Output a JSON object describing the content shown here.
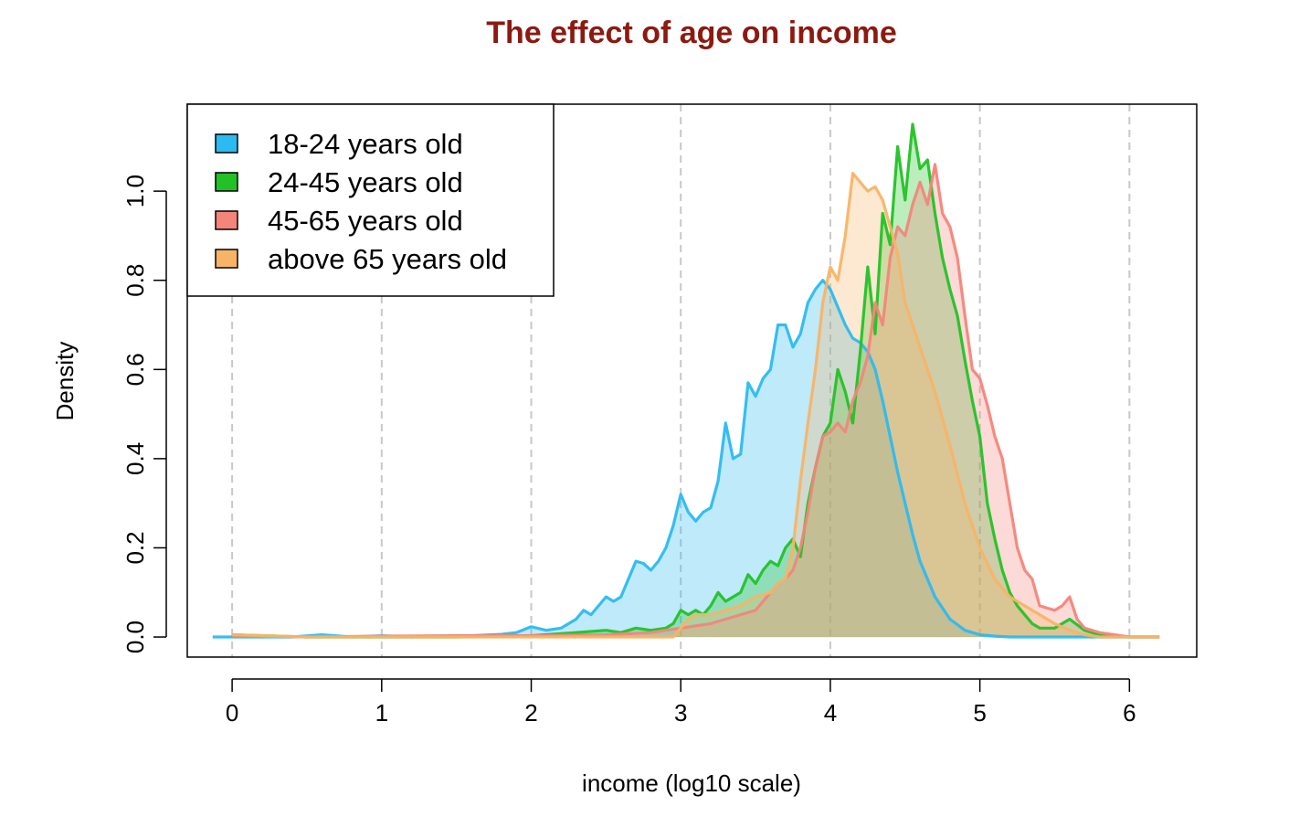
{
  "chart_data": {
    "type": "area",
    "title": "The effect of age on income",
    "title_color": "#8B1A10",
    "xlabel": "income (log10 scale)",
    "ylabel": "Density",
    "xlim": [
      -0.3,
      6.45
    ],
    "ylim": [
      -0.045,
      1.195
    ],
    "x_ticks": [
      "0",
      "1",
      "2",
      "3",
      "4",
      "5",
      "6"
    ],
    "y_ticks": [
      "0.0",
      "0.2",
      "0.4",
      "0.6",
      "0.8",
      "1.0"
    ],
    "grid": "vertical dashed lines at x ticks",
    "legend_position": "top-left",
    "series": [
      {
        "name": "18-24 years old",
        "color": "#2BBBF0",
        "fill": "#2BBBF0",
        "x": [
          -0.13,
          0.0,
          0.2,
          0.4,
          0.6,
          0.8,
          1.0,
          1.2,
          1.4,
          1.6,
          1.8,
          1.9,
          2.0,
          2.1,
          2.2,
          2.3,
          2.35,
          2.4,
          2.5,
          2.55,
          2.6,
          2.7,
          2.75,
          2.8,
          2.85,
          2.9,
          2.95,
          3.0,
          3.05,
          3.1,
          3.15,
          3.2,
          3.25,
          3.3,
          3.35,
          3.4,
          3.45,
          3.5,
          3.55,
          3.6,
          3.65,
          3.7,
          3.75,
          3.8,
          3.85,
          3.9,
          3.95,
          4.0,
          4.05,
          4.1,
          4.15,
          4.2,
          4.25,
          4.3,
          4.35,
          4.4,
          4.45,
          4.5,
          4.55,
          4.6,
          4.7,
          4.8,
          4.9,
          5.0,
          5.1,
          5.2,
          5.4,
          5.6,
          5.8,
          6.0,
          6.2
        ],
        "y": [
          0.0,
          0.0,
          0.0,
          0.0,
          0.005,
          0.0,
          0.003,
          0.0,
          0.002,
          0.003,
          0.006,
          0.01,
          0.023,
          0.015,
          0.02,
          0.04,
          0.06,
          0.05,
          0.09,
          0.08,
          0.09,
          0.17,
          0.165,
          0.15,
          0.17,
          0.2,
          0.25,
          0.32,
          0.28,
          0.26,
          0.28,
          0.29,
          0.35,
          0.48,
          0.4,
          0.41,
          0.57,
          0.54,
          0.58,
          0.6,
          0.7,
          0.7,
          0.65,
          0.68,
          0.75,
          0.78,
          0.8,
          0.78,
          0.74,
          0.7,
          0.67,
          0.66,
          0.64,
          0.6,
          0.53,
          0.45,
          0.37,
          0.3,
          0.23,
          0.17,
          0.09,
          0.04,
          0.015,
          0.005,
          0.002,
          0.0,
          0.0,
          0.0,
          0.0,
          0.0,
          0.0
        ]
      },
      {
        "name": "24-45 years old",
        "color": "#22C226",
        "fill": "#22C226",
        "x": [
          0.0,
          0.5,
          1.0,
          1.5,
          2.0,
          2.3,
          2.5,
          2.6,
          2.7,
          2.8,
          2.9,
          2.95,
          3.0,
          3.05,
          3.1,
          3.15,
          3.2,
          3.25,
          3.3,
          3.35,
          3.4,
          3.45,
          3.5,
          3.55,
          3.6,
          3.65,
          3.7,
          3.75,
          3.8,
          3.85,
          3.9,
          3.95,
          4.0,
          4.05,
          4.1,
          4.15,
          4.2,
          4.25,
          4.3,
          4.35,
          4.4,
          4.45,
          4.5,
          4.55,
          4.6,
          4.65,
          4.7,
          4.75,
          4.8,
          4.85,
          4.9,
          4.95,
          5.0,
          5.05,
          5.1,
          5.15,
          5.2,
          5.25,
          5.3,
          5.35,
          5.4,
          5.5,
          5.6,
          5.7,
          5.8,
          5.9,
          6.0,
          6.2
        ],
        "y": [
          0.005,
          0.0,
          0.0,
          0.0,
          0.003,
          0.01,
          0.015,
          0.01,
          0.02,
          0.015,
          0.02,
          0.03,
          0.06,
          0.05,
          0.06,
          0.05,
          0.07,
          0.1,
          0.08,
          0.09,
          0.1,
          0.14,
          0.12,
          0.15,
          0.17,
          0.16,
          0.2,
          0.22,
          0.18,
          0.3,
          0.38,
          0.45,
          0.48,
          0.6,
          0.55,
          0.48,
          0.64,
          0.83,
          0.68,
          0.95,
          0.88,
          1.1,
          0.98,
          1.15,
          1.05,
          1.07,
          0.95,
          0.85,
          0.78,
          0.72,
          0.62,
          0.53,
          0.45,
          0.3,
          0.22,
          0.15,
          0.1,
          0.07,
          0.05,
          0.03,
          0.02,
          0.02,
          0.04,
          0.015,
          0.005,
          0.002,
          0.0,
          0.0
        ]
      },
      {
        "name": "45-65 years old",
        "color": "#F4857A",
        "fill": "#F4857A",
        "x": [
          0.0,
          0.5,
          1.0,
          1.5,
          2.0,
          2.5,
          2.8,
          2.9,
          3.0,
          3.1,
          3.2,
          3.3,
          3.4,
          3.5,
          3.55,
          3.6,
          3.65,
          3.7,
          3.75,
          3.8,
          3.85,
          3.9,
          3.95,
          4.0,
          4.05,
          4.1,
          4.15,
          4.2,
          4.25,
          4.3,
          4.35,
          4.4,
          4.45,
          4.5,
          4.55,
          4.6,
          4.65,
          4.7,
          4.75,
          4.8,
          4.85,
          4.9,
          4.95,
          5.0,
          5.05,
          5.1,
          5.15,
          5.2,
          5.25,
          5.3,
          5.35,
          5.4,
          5.5,
          5.55,
          5.6,
          5.65,
          5.7,
          5.8,
          5.9,
          6.0,
          6.2
        ],
        "y": [
          0.003,
          0.0,
          0.002,
          0.003,
          0.003,
          0.005,
          0.01,
          0.015,
          0.02,
          0.025,
          0.03,
          0.04,
          0.05,
          0.06,
          0.08,
          0.1,
          0.12,
          0.13,
          0.15,
          0.2,
          0.28,
          0.38,
          0.45,
          0.46,
          0.48,
          0.46,
          0.53,
          0.57,
          0.63,
          0.75,
          0.7,
          0.85,
          0.92,
          0.9,
          0.97,
          1.02,
          0.97,
          1.06,
          0.95,
          0.92,
          0.85,
          0.72,
          0.6,
          0.58,
          0.52,
          0.45,
          0.4,
          0.3,
          0.2,
          0.15,
          0.13,
          0.07,
          0.06,
          0.07,
          0.09,
          0.04,
          0.02,
          0.01,
          0.005,
          0.0,
          0.0
        ]
      },
      {
        "name": "above 65 years old",
        "color": "#F7B466",
        "fill": "#F7B466",
        "x": [
          0.0,
          0.5,
          1.0,
          1.5,
          2.0,
          2.5,
          2.8,
          2.95,
          3.0,
          3.05,
          3.1,
          3.2,
          3.3,
          3.4,
          3.5,
          3.6,
          3.65,
          3.7,
          3.75,
          3.8,
          3.85,
          3.9,
          3.95,
          4.0,
          4.05,
          4.1,
          4.15,
          4.2,
          4.25,
          4.3,
          4.35,
          4.4,
          4.45,
          4.5,
          4.55,
          4.6,
          4.7,
          4.8,
          4.9,
          5.0,
          5.1,
          5.2,
          5.3,
          5.4,
          5.5,
          5.6,
          5.7,
          5.8,
          6.0,
          6.2
        ],
        "y": [
          0.005,
          0.0,
          0.0,
          0.0,
          0.0,
          0.0,
          0.0,
          0.0,
          0.02,
          0.04,
          0.05,
          0.05,
          0.06,
          0.07,
          0.09,
          0.1,
          0.12,
          0.13,
          0.2,
          0.35,
          0.48,
          0.6,
          0.75,
          0.83,
          0.8,
          0.9,
          1.04,
          1.02,
          1.0,
          1.01,
          0.98,
          0.92,
          0.86,
          0.75,
          0.7,
          0.65,
          0.55,
          0.43,
          0.3,
          0.2,
          0.13,
          0.09,
          0.07,
          0.05,
          0.03,
          0.015,
          0.005,
          0.0,
          0.0,
          0.0
        ]
      }
    ]
  }
}
